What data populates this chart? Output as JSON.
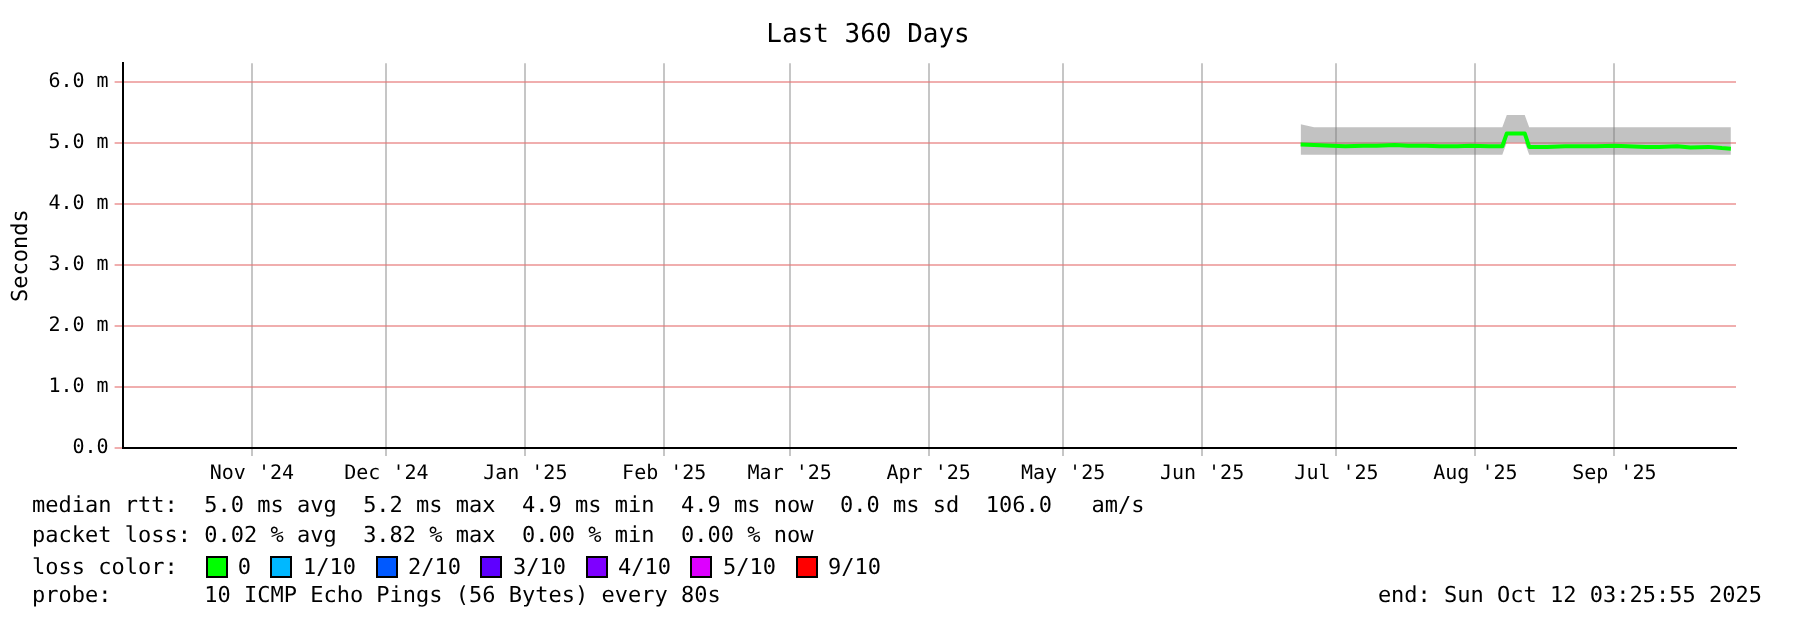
{
  "chart_data": {
    "type": "line",
    "title": "Last 360 Days",
    "ylabel": "Seconds",
    "legend_title": "loss color:",
    "legend": "bottom",
    "grid": true,
    "marker": "none",
    "line_style": "solid",
    "xlim": [
      "2024-10-17T03:25",
      "2025-10-12T03:25"
    ],
    "xticks": [
      {
        "value": "2024-11-15",
        "label": "Nov '24"
      },
      {
        "value": "2024-12-15",
        "label": "Dec '24"
      },
      {
        "value": "2025-01-15",
        "label": "Jan '25"
      },
      {
        "value": "2025-02-15",
        "label": "Feb '25"
      },
      {
        "value": "2025-03-15",
        "label": "Mar '25"
      },
      {
        "value": "2025-04-15",
        "label": "Apr '25"
      },
      {
        "value": "2025-05-15",
        "label": "May '25"
      },
      {
        "value": "2025-06-15",
        "label": "Jun '25"
      },
      {
        "value": "2025-07-15",
        "label": "Jul '25"
      },
      {
        "value": "2025-08-15",
        "label": "Aug '25"
      },
      {
        "value": "2025-09-15",
        "label": "Sep '25"
      }
    ],
    "ylim": [
      0,
      6.3
    ],
    "yticks": [
      {
        "value": 0,
        "label": "0.0"
      },
      {
        "value": 1,
        "label": "1.0 m"
      },
      {
        "value": 2,
        "label": "2.0 m"
      },
      {
        "value": 3,
        "label": "3.0 m"
      },
      {
        "value": 4,
        "label": "4.0 m"
      },
      {
        "value": 5,
        "label": "5.0 m"
      },
      {
        "value": 6,
        "label": "6.0 m"
      }
    ],
    "x": [
      "2025-07-07",
      "2025-07-10",
      "2025-07-14",
      "2025-07-17",
      "2025-07-21",
      "2025-07-24",
      "2025-07-28",
      "2025-07-31",
      "2025-08-04",
      "2025-08-07",
      "2025-08-11",
      "2025-08-14",
      "2025-08-18",
      "2025-08-21",
      "2025-08-22",
      "2025-08-26",
      "2025-08-27",
      "2025-08-31",
      "2025-09-04",
      "2025-09-08",
      "2025-09-11",
      "2025-09-15",
      "2025-09-18",
      "2025-09-22",
      "2025-09-25",
      "2025-09-29",
      "2025-10-02",
      "2025-10-06",
      "2025-10-09",
      "2025-10-11"
    ],
    "series": [
      {
        "name": "0",
        "color": "#00ff00",
        "values": [
          4.97,
          4.96,
          4.95,
          4.94,
          4.95,
          4.95,
          4.96,
          4.95,
          4.95,
          4.94,
          4.94,
          4.95,
          4.94,
          4.94,
          5.15,
          5.15,
          4.93,
          4.93,
          4.94,
          4.94,
          4.94,
          4.95,
          4.94,
          4.93,
          4.93,
          4.94,
          4.92,
          4.93,
          4.91,
          4.9
        ],
        "lower": [
          4.8,
          4.8,
          4.8,
          4.8,
          4.8,
          4.8,
          4.8,
          4.8,
          4.8,
          4.8,
          4.8,
          4.8,
          4.8,
          4.8,
          5.0,
          5.0,
          4.8,
          4.8,
          4.8,
          4.8,
          4.8,
          4.8,
          4.8,
          4.8,
          4.8,
          4.8,
          4.8,
          4.8,
          4.8,
          4.8
        ],
        "upper": [
          5.3,
          5.25,
          5.25,
          5.25,
          5.25,
          5.25,
          5.25,
          5.25,
          5.25,
          5.25,
          5.25,
          5.25,
          5.25,
          5.25,
          5.45,
          5.45,
          5.25,
          5.25,
          5.25,
          5.25,
          5.25,
          5.25,
          5.25,
          5.25,
          5.25,
          5.25,
          5.25,
          5.25,
          5.25,
          5.25
        ]
      },
      {
        "name": "1/10",
        "color": "#00b8ff",
        "values": [
          null,
          null,
          null,
          null,
          null,
          null,
          null,
          null,
          null,
          null,
          null,
          null,
          null,
          null,
          null,
          null,
          null,
          null,
          null,
          null,
          null,
          null,
          null,
          null,
          null,
          null,
          null,
          null,
          null,
          null
        ]
      },
      {
        "name": "2/10",
        "color": "#0059ff",
        "values": [
          null,
          null,
          null,
          null,
          null,
          null,
          null,
          null,
          null,
          null,
          null,
          null,
          null,
          null,
          null,
          null,
          null,
          null,
          null,
          null,
          null,
          null,
          null,
          null,
          null,
          null,
          null,
          null,
          null,
          null
        ]
      },
      {
        "name": "3/10",
        "color": "#5e00ff",
        "values": [
          null,
          null,
          null,
          null,
          null,
          null,
          null,
          null,
          null,
          null,
          null,
          null,
          null,
          null,
          null,
          null,
          null,
          null,
          null,
          null,
          null,
          null,
          null,
          null,
          null,
          null,
          null,
          null,
          null,
          null
        ]
      },
      {
        "name": "4/10",
        "color": "#7e00ff",
        "values": [
          null,
          null,
          null,
          null,
          null,
          null,
          null,
          null,
          null,
          null,
          null,
          null,
          null,
          null,
          null,
          null,
          null,
          null,
          null,
          null,
          null,
          null,
          null,
          null,
          null,
          null,
          null,
          null,
          null,
          null
        ]
      },
      {
        "name": "5/10",
        "color": "#dd00ff",
        "values": [
          null,
          null,
          null,
          null,
          null,
          null,
          null,
          null,
          null,
          null,
          null,
          null,
          null,
          null,
          null,
          null,
          null,
          null,
          null,
          null,
          null,
          null,
          null,
          null,
          null,
          null,
          null,
          null,
          null,
          null
        ]
      },
      {
        "name": "9/10",
        "color": "#ff0000",
        "values": [
          null,
          null,
          null,
          null,
          null,
          null,
          null,
          null,
          null,
          null,
          null,
          null,
          null,
          null,
          null,
          null,
          null,
          null,
          null,
          null,
          null,
          null,
          null,
          null,
          null,
          null,
          null,
          null,
          null,
          null
        ]
      }
    ],
    "annotations": [
      "median rtt:  5.0 ms avg  5.2 ms max  4.9 ms min  4.9 ms now  0.0 ms sd  106.0   am/s",
      "packet loss: 0.02 % avg  3.82 % max  0.00 % min  0.00 % now",
      "probe:       10 ICMP Echo Pings (56 Bytes) every 80s",
      "end: Sun Oct 12 03:25:55 2025"
    ]
  }
}
